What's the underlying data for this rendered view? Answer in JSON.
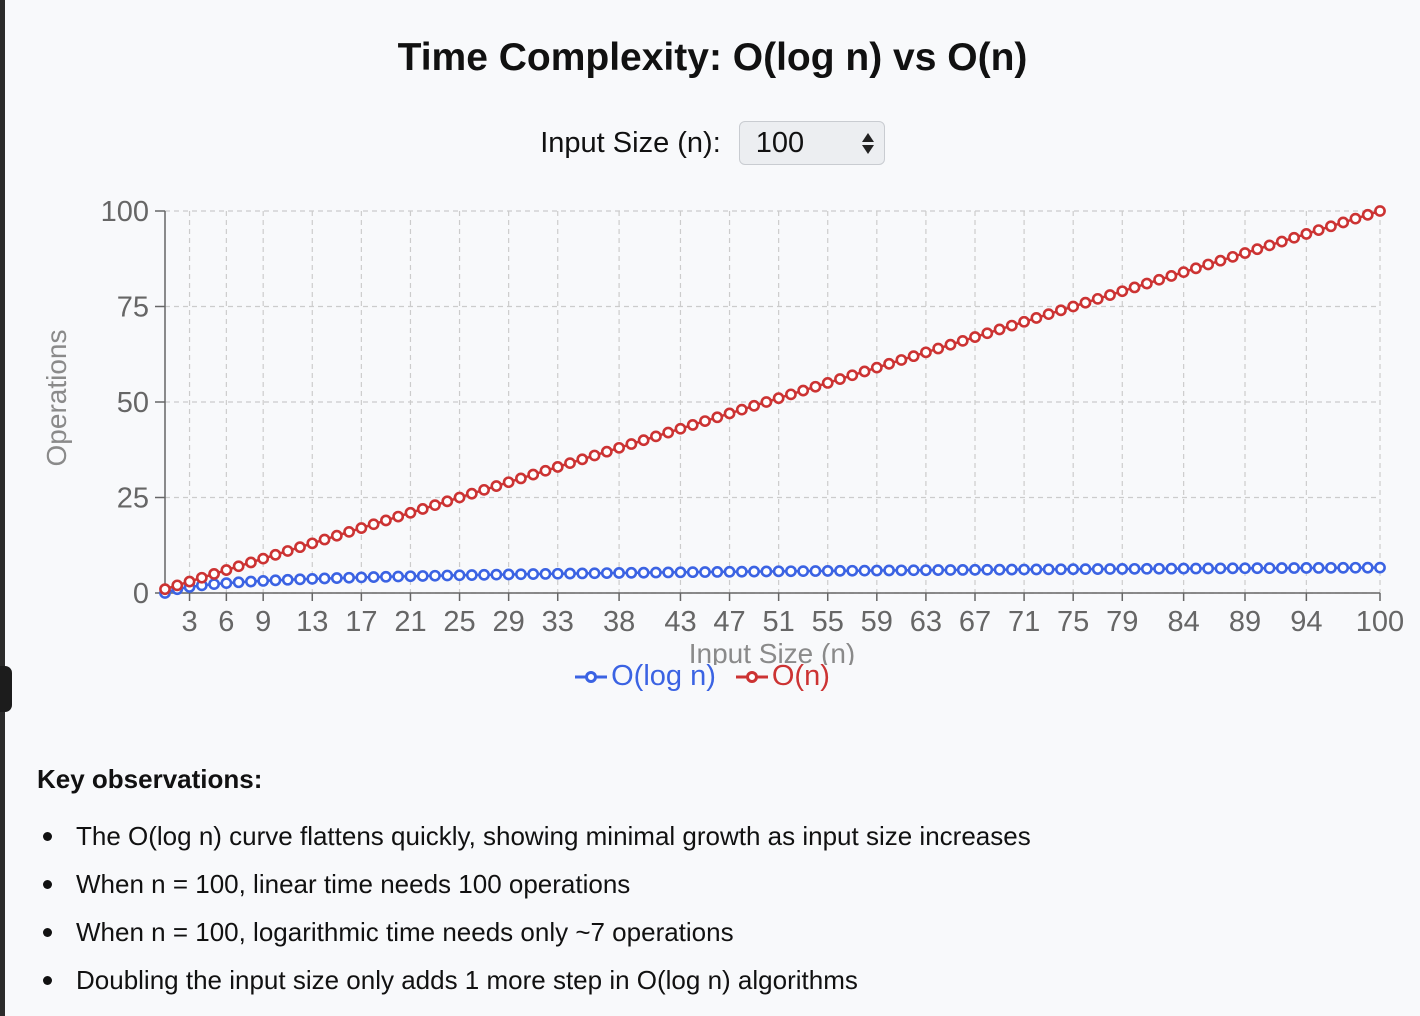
{
  "title": "Time Complexity: O(log n) vs O(n)",
  "controls": {
    "input_label": "Input Size (n):",
    "input_value": "100"
  },
  "legend": {
    "log_label": "O(log n)",
    "linear_label": "O(n)"
  },
  "colors": {
    "log": "#3b63e3",
    "linear": "#cc3333",
    "grid": "#cccccc",
    "axis": "#666666",
    "axis_label": "#8a8a8a"
  },
  "observations": {
    "heading": "Key observations:",
    "items": [
      "The O(log n) curve flattens quickly, showing minimal growth as input size increases",
      "When n = 100, linear time needs 100 operations",
      "When n = 100, logarithmic time needs only ~7 operations",
      "Doubling the input size only adds 1 more step in O(log n) algorithms"
    ]
  },
  "chart_data": {
    "type": "line",
    "xlabel": "Input Size (n)",
    "ylabel": "Operations",
    "x": {
      "from": 1,
      "to": 100,
      "step": 1
    },
    "x_ticks": [
      3,
      6,
      9,
      13,
      17,
      21,
      25,
      29,
      33,
      38,
      43,
      47,
      51,
      55,
      59,
      63,
      67,
      71,
      75,
      79,
      84,
      89,
      94,
      100
    ],
    "y_ticks": [
      0,
      25,
      50,
      75,
      100
    ],
    "ylim": [
      0,
      100
    ],
    "grid": true,
    "legend_position": "bottom",
    "series": [
      {
        "name": "O(log n)",
        "function": "log2(n)",
        "color": "#3b63e3"
      },
      {
        "name": "O(n)",
        "function": "n",
        "color": "#cc3333"
      }
    ]
  }
}
